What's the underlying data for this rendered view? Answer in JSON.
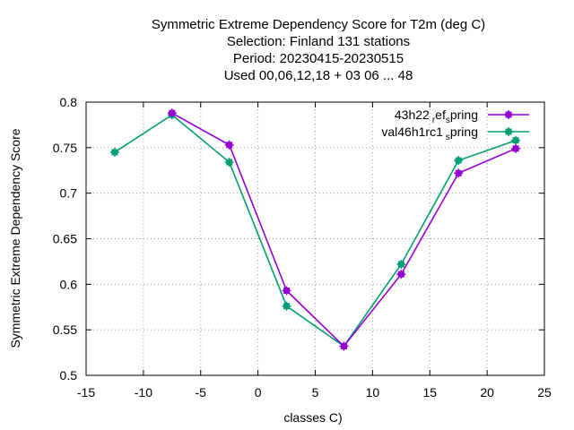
{
  "chart_data": {
    "type": "line",
    "title_lines": [
      "Symmetric Extreme Dependency Score  for T2m (deg C)",
      "Selection: Finland    131 stations",
      "Period: 20230415-20230515",
      "Used  00,06,12,18  + 03 06 ... 48"
    ],
    "xlabel": "classes C)",
    "ylabel": "Symmetric Extreme Dependency Score",
    "xlim": [
      -15,
      25
    ],
    "ylim": [
      0.5,
      0.8
    ],
    "xticks": [
      -15,
      -10,
      -5,
      0,
      5,
      10,
      15,
      20,
      25
    ],
    "yticks": [
      0.5,
      0.55,
      0.6,
      0.65,
      0.7,
      0.75,
      0.8
    ],
    "xtick_labels": [
      "-15",
      "-10",
      "-5",
      "0",
      "5",
      "10",
      "15",
      "20",
      "25"
    ],
    "ytick_labels": [
      "0.5",
      "0.55",
      "0.6",
      "0.65",
      "0.7",
      "0.75",
      "0.8"
    ],
    "grid": true,
    "legend_position": "top-right",
    "series": [
      {
        "name": "43h22_ref_spring",
        "legend_main": "43h22",
        "legend_sub1": "r",
        "legend_mid": "ef",
        "legend_sub2": "s",
        "legend_end": "pring",
        "color": "#9400d3",
        "x": [
          -7.5,
          -2.5,
          2.5,
          7.5,
          12.5,
          17.5,
          22.5
        ],
        "y": [
          0.788,
          0.753,
          0.593,
          0.532,
          0.611,
          0.722,
          0.749
        ]
      },
      {
        "name": "val46h1rc1_spring",
        "legend_main": "val46h1rc1",
        "legend_sub1": "s",
        "legend_end": "pring",
        "color": "#009e73",
        "x": [
          -12.5,
          -7.5,
          -2.5,
          2.5,
          7.5,
          12.5,
          17.5,
          22.5
        ],
        "y": [
          0.745,
          0.786,
          0.734,
          0.576,
          0.532,
          0.622,
          0.736,
          0.758
        ]
      }
    ]
  }
}
